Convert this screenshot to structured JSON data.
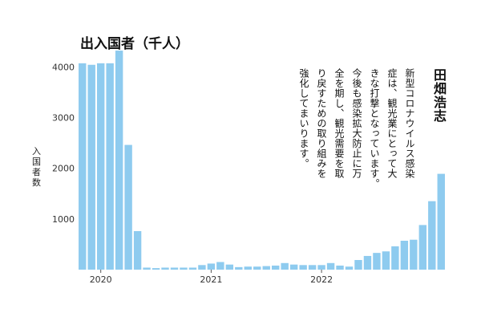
{
  "chart_data": {
    "type": "bar",
    "title": "出入国者（千人）",
    "ylabel": "入国者数",
    "ylim": [
      0,
      4400
    ],
    "yticks": [
      1000,
      2000,
      3000,
      4000
    ],
    "x_start": "2019-11",
    "xtick_labels": [
      {
        "label": "2020",
        "x": "2020-01"
      },
      {
        "label": "2021",
        "x": "2021-01"
      },
      {
        "label": "2022",
        "x": "2022-01"
      }
    ],
    "categories": [
      "2019-11",
      "2019-12",
      "2020-01",
      "2020-02",
      "2020-03",
      "2020-04",
      "2020-05",
      "2020-06",
      "2020-07",
      "2020-08",
      "2020-09",
      "2020-10",
      "2020-11",
      "2020-12",
      "2021-01",
      "2021-02",
      "2021-03",
      "2021-04",
      "2021-05",
      "2021-06",
      "2021-07",
      "2021-08",
      "2021-09",
      "2021-10",
      "2021-11",
      "2021-12",
      "2022-01",
      "2022-02",
      "2022-03",
      "2022-04",
      "2022-05",
      "2022-06",
      "2022-07",
      "2022-08",
      "2022-09",
      "2022-10",
      "2022-11",
      "2022-12",
      "2023-01",
      "2023-02"
    ],
    "values": [
      4070,
      4040,
      4070,
      4070,
      4320,
      2460,
      760,
      40,
      30,
      40,
      40,
      40,
      40,
      90,
      120,
      150,
      100,
      50,
      60,
      60,
      70,
      80,
      130,
      100,
      90,
      90,
      90,
      130,
      80,
      60,
      190,
      270,
      330,
      360,
      460,
      570,
      590,
      880,
      1350,
      1890
    ],
    "bar_color": "#8ecbef",
    "grid": false,
    "legend": "none"
  },
  "annotation": {
    "quote_lines": [
      "新型コロナウイルス感染",
      "症は、観光業にとって大",
      "きな打撃となっています。",
      "今後も感染拡大防止に万",
      "全を期し、観光需要を取",
      "り戻すための取り組みを",
      "強化してまいります。"
    ],
    "author": "田畑浩志"
  }
}
